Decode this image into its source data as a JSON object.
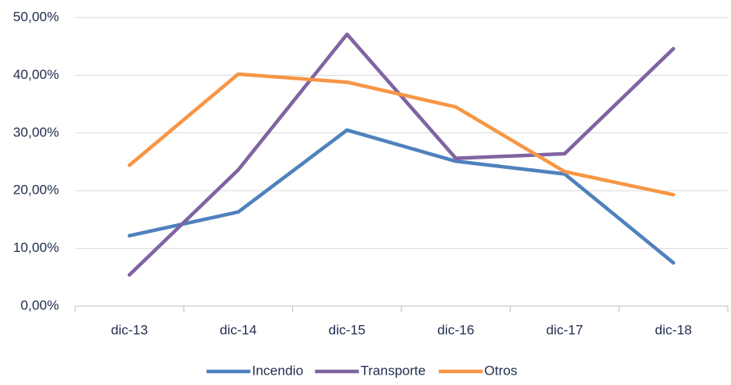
{
  "chart_data": {
    "type": "line",
    "categories": [
      "dic-13",
      "dic-14",
      "dic-15",
      "dic-16",
      "dic-17",
      "dic-18"
    ],
    "series": [
      {
        "name": "Incendio",
        "color": "#4f81bd",
        "values": [
          12.2,
          16.3,
          30.5,
          25.1,
          22.9,
          7.5
        ]
      },
      {
        "name": "Transporte",
        "color": "#8064a2",
        "values": [
          5.4,
          23.6,
          47.1,
          25.6,
          26.4,
          44.6
        ]
      },
      {
        "name": "Otros",
        "color": "#f79646",
        "values": [
          24.4,
          40.2,
          38.8,
          34.5,
          23.3,
          19.3
        ]
      }
    ],
    "ylim": [
      0,
      50
    ],
    "yticks": [
      {
        "value": 0,
        "label": "0,00%"
      },
      {
        "value": 10,
        "label": "10,00%"
      },
      {
        "value": 20,
        "label": "20,00%"
      },
      {
        "value": 30,
        "label": "30,00%"
      },
      {
        "value": 40,
        "label": "40,00%"
      },
      {
        "value": 50,
        "label": "50,00%"
      }
    ],
    "grid": true,
    "legend": "bottom"
  }
}
